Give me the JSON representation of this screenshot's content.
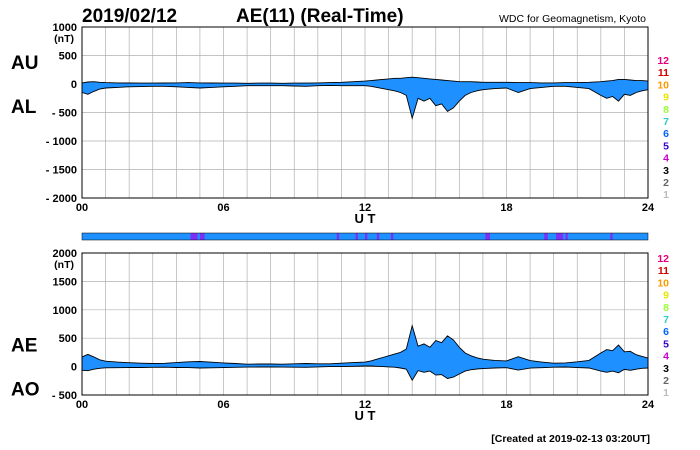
{
  "header": {
    "date": "2019/02/12",
    "title": "AE(11) (Real-Time)",
    "source": "WDC for Geomagnetism, Kyoto"
  },
  "footer": {
    "created": "[Created at 2019-02-13 03:20UT]"
  },
  "colors": {
    "fill": "#1e90ff",
    "grid": "#b0b0b0",
    "bar": "#1e90ff",
    "bar_highlight": "#7b2ff7"
  },
  "legend": {
    "labels": [
      "12",
      "11",
      "10",
      "9",
      "8",
      "7",
      "6",
      "5",
      "4",
      "3",
      "2",
      "1"
    ],
    "colors": [
      "#e6007e",
      "#d40000",
      "#ff9900",
      "#e6e600",
      "#99ff33",
      "#33cccc",
      "#0066ff",
      "#3300cc",
      "#cc00cc",
      "#000000",
      "#666666",
      "#bbbbbb"
    ]
  },
  "chart_data": [
    {
      "type": "area",
      "upper_label": "AU",
      "lower_label": "AL",
      "unit": "(nT)",
      "xlabel": "U T",
      "xlim": [
        0,
        24
      ],
      "ylim": [
        -2000,
        1000
      ],
      "yticks": [
        "1000",
        "500",
        "0",
        "- 500",
        "- 1000",
        "- 1500",
        "- 2000"
      ],
      "xticks": [
        "00",
        "06",
        "12",
        "18",
        "24"
      ],
      "series": [
        {
          "name": "AU",
          "x": [
            0,
            0.25,
            0.5,
            0.75,
            1,
            1.5,
            2,
            2.5,
            3,
            3.5,
            4,
            4.5,
            5,
            5.5,
            6,
            6.5,
            7,
            7.5,
            8,
            8.5,
            9,
            9.5,
            10,
            10.5,
            11,
            11.5,
            12,
            12.25,
            12.5,
            12.75,
            13,
            13.25,
            13.5,
            13.75,
            14,
            14.25,
            14.5,
            14.75,
            15,
            15.25,
            15.5,
            15.75,
            16,
            16.25,
            16.5,
            16.75,
            17,
            17.5,
            18,
            18.5,
            19,
            19.5,
            20,
            20.5,
            21,
            21.5,
            22,
            22.25,
            22.5,
            22.75,
            23,
            23.25,
            23.5,
            23.75,
            24
          ],
          "values": [
            20,
            35,
            40,
            30,
            25,
            20,
            18,
            15,
            15,
            18,
            20,
            25,
            20,
            18,
            15,
            15,
            12,
            15,
            15,
            12,
            15,
            15,
            20,
            25,
            30,
            40,
            50,
            60,
            70,
            80,
            90,
            100,
            100,
            110,
            120,
            110,
            100,
            90,
            80,
            70,
            60,
            50,
            40,
            40,
            40,
            35,
            30,
            30,
            30,
            25,
            25,
            20,
            20,
            25,
            25,
            30,
            40,
            50,
            60,
            80,
            80,
            70,
            60,
            60,
            50
          ]
        },
        {
          "name": "AL",
          "x": [
            0,
            0.25,
            0.5,
            0.75,
            1,
            1.5,
            2,
            2.5,
            3,
            3.5,
            4,
            4.5,
            5,
            5.5,
            6,
            6.5,
            7,
            7.5,
            8,
            8.5,
            9,
            9.5,
            10,
            10.5,
            11,
            11.5,
            12,
            12.25,
            12.5,
            12.75,
            13,
            13.25,
            13.5,
            13.75,
            14,
            14.25,
            14.5,
            14.75,
            15,
            15.25,
            15.5,
            15.75,
            16,
            16.25,
            16.5,
            16.75,
            17,
            17.5,
            18,
            18.5,
            19,
            19.5,
            20,
            20.5,
            21,
            21.5,
            22,
            22.25,
            22.5,
            22.75,
            23,
            23.25,
            23.5,
            23.75,
            24
          ],
          "values": [
            -150,
            -180,
            -130,
            -90,
            -70,
            -60,
            -50,
            -45,
            -40,
            -40,
            -50,
            -60,
            -70,
            -60,
            -50,
            -40,
            -30,
            -30,
            -30,
            -30,
            -35,
            -40,
            -30,
            -25,
            -30,
            -30,
            -30,
            -40,
            -60,
            -80,
            -100,
            -120,
            -150,
            -200,
            -600,
            -250,
            -300,
            -250,
            -380,
            -350,
            -480,
            -420,
            -300,
            -200,
            -150,
            -120,
            -100,
            -80,
            -70,
            -150,
            -80,
            -60,
            -40,
            -40,
            -60,
            -80,
            -200,
            -250,
            -220,
            -300,
            -180,
            -200,
            -150,
            -120,
            -100
          ]
        }
      ]
    },
    {
      "type": "area",
      "upper_label": "AE",
      "lower_label": "AO",
      "unit": "(nT)",
      "xlabel": "U T",
      "xlim": [
        0,
        24
      ],
      "ylim": [
        -500,
        2000
      ],
      "yticks": [
        "2000",
        "1500",
        "1000",
        "500",
        "0",
        "- 500"
      ],
      "xticks": [
        "00",
        "06",
        "12",
        "18",
        "24"
      ],
      "series": [
        {
          "name": "AE",
          "x": [
            0,
            0.25,
            0.5,
            0.75,
            1,
            1.5,
            2,
            2.5,
            3,
            3.5,
            4,
            4.5,
            5,
            5.5,
            6,
            6.5,
            7,
            7.5,
            8,
            8.5,
            9,
            9.5,
            10,
            10.5,
            11,
            11.5,
            12,
            12.25,
            12.5,
            12.75,
            13,
            13.25,
            13.5,
            13.75,
            14,
            14.25,
            14.5,
            14.75,
            15,
            15.25,
            15.5,
            15.75,
            16,
            16.25,
            16.5,
            16.75,
            17,
            17.5,
            18,
            18.5,
            19,
            19.5,
            20,
            20.5,
            21,
            21.5,
            22,
            22.25,
            22.5,
            22.75,
            23,
            23.25,
            23.5,
            23.75,
            24
          ],
          "values": [
            170,
            215,
            170,
            120,
            95,
            80,
            68,
            60,
            55,
            58,
            70,
            85,
            90,
            78,
            65,
            55,
            42,
            45,
            45,
            42,
            50,
            55,
            50,
            50,
            60,
            70,
            80,
            100,
            130,
            160,
            190,
            220,
            250,
            310,
            720,
            360,
            400,
            340,
            460,
            420,
            540,
            470,
            340,
            240,
            190,
            155,
            130,
            110,
            100,
            175,
            105,
            80,
            60,
            65,
            85,
            110,
            240,
            300,
            280,
            380,
            260,
            270,
            210,
            180,
            150
          ]
        },
        {
          "name": "AO",
          "x": [
            0,
            0.25,
            0.5,
            0.75,
            1,
            1.5,
            2,
            2.5,
            3,
            3.5,
            4,
            4.5,
            5,
            5.5,
            6,
            6.5,
            7,
            7.5,
            8,
            8.5,
            9,
            9.5,
            10,
            10.5,
            11,
            11.5,
            12,
            12.25,
            12.5,
            12.75,
            13,
            13.25,
            13.5,
            13.75,
            14,
            14.25,
            14.5,
            14.75,
            15,
            15.25,
            15.5,
            15.75,
            16,
            16.25,
            16.5,
            16.75,
            17,
            17.5,
            18,
            18.5,
            19,
            19.5,
            20,
            20.5,
            21,
            21.5,
            22,
            22.25,
            22.5,
            22.75,
            23,
            23.25,
            23.5,
            23.75,
            24
          ],
          "values": [
            -65,
            -72,
            -45,
            -30,
            -22,
            -20,
            -16,
            -15,
            -12,
            -11,
            -15,
            -17,
            -25,
            -21,
            -17,
            -12,
            -9,
            -7,
            -7,
            -9,
            -10,
            -12,
            -5,
            0,
            0,
            5,
            10,
            10,
            5,
            0,
            -5,
            -10,
            -25,
            -45,
            -240,
            -70,
            -100,
            -80,
            -150,
            -140,
            -210,
            -185,
            -130,
            -80,
            -55,
            -42,
            -35,
            -25,
            -20,
            -62,
            -27,
            -20,
            -10,
            -7,
            -17,
            -25,
            -80,
            -100,
            -80,
            -110,
            -50,
            -65,
            -45,
            -30,
            -25
          ]
        }
      ]
    }
  ]
}
